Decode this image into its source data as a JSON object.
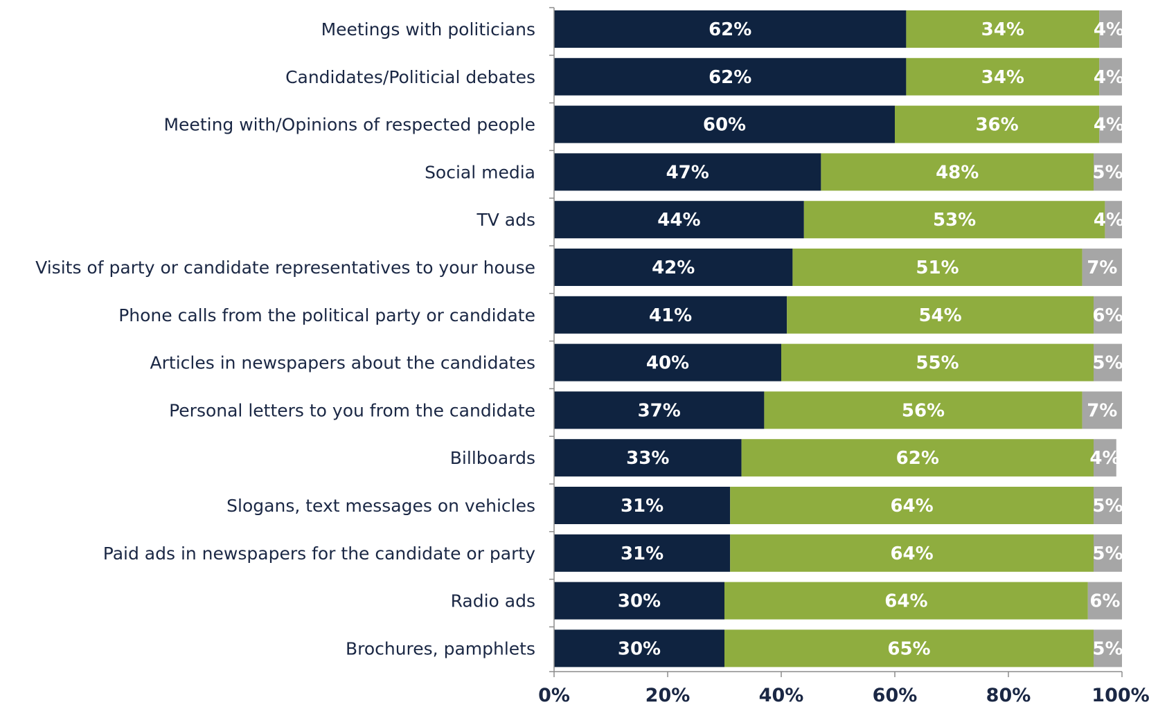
{
  "chart_data": {
    "type": "bar",
    "orientation": "horizontal",
    "stacked": true,
    "title": "",
    "xlabel": "",
    "ylabel": "",
    "xlim": [
      0,
      100
    ],
    "x_ticks": [
      "0%",
      "20%",
      "40%",
      "60%",
      "80%",
      "100%"
    ],
    "legend": "none",
    "grid": false,
    "categories": [
      "Meetings with politicians",
      "Candidates/Politicial debates",
      "Meeting with/Opinions of respected people",
      "Social media",
      "TV ads",
      "Visits of party or candidate representatives to your house",
      "Phone calls from the political party or candidate",
      "Articles in newspapers about the candidates",
      "Personal letters to you from the candidate",
      "Billboards",
      "Slogans, text messages on vehicles",
      "Paid ads in newspapers for the candidate or party",
      "Radio ads",
      "Brochures, pamphlets"
    ],
    "series": [
      {
        "color": "#0f2340",
        "values": [
          62,
          62,
          60,
          47,
          44,
          42,
          41,
          40,
          37,
          33,
          31,
          31,
          30,
          30
        ],
        "labels": [
          "62%",
          "62%",
          "60%",
          "47%",
          "44%",
          "42%",
          "41%",
          "40%",
          "37%",
          "33%",
          "31%",
          "31%",
          "30%",
          "30%"
        ]
      },
      {
        "color": "#8fad3f",
        "values": [
          34,
          34,
          36,
          48,
          53,
          51,
          54,
          55,
          56,
          62,
          64,
          64,
          64,
          65
        ],
        "labels": [
          "34%",
          "34%",
          "36%",
          "48%",
          "53%",
          "51%",
          "54%",
          "55%",
          "56%",
          "62%",
          "64%",
          "64%",
          "64%",
          "65%"
        ]
      },
      {
        "color": "#a6a6a6",
        "values": [
          4,
          4,
          4,
          5,
          4,
          7,
          6,
          5,
          7,
          4,
          5,
          5,
          6,
          5
        ],
        "labels": [
          "4%",
          "4%",
          "4%",
          "5%",
          "4%",
          "7%",
          "6%",
          "5%",
          "7%",
          "4%",
          "5%",
          "5%",
          "6%",
          "5%"
        ]
      }
    ]
  }
}
